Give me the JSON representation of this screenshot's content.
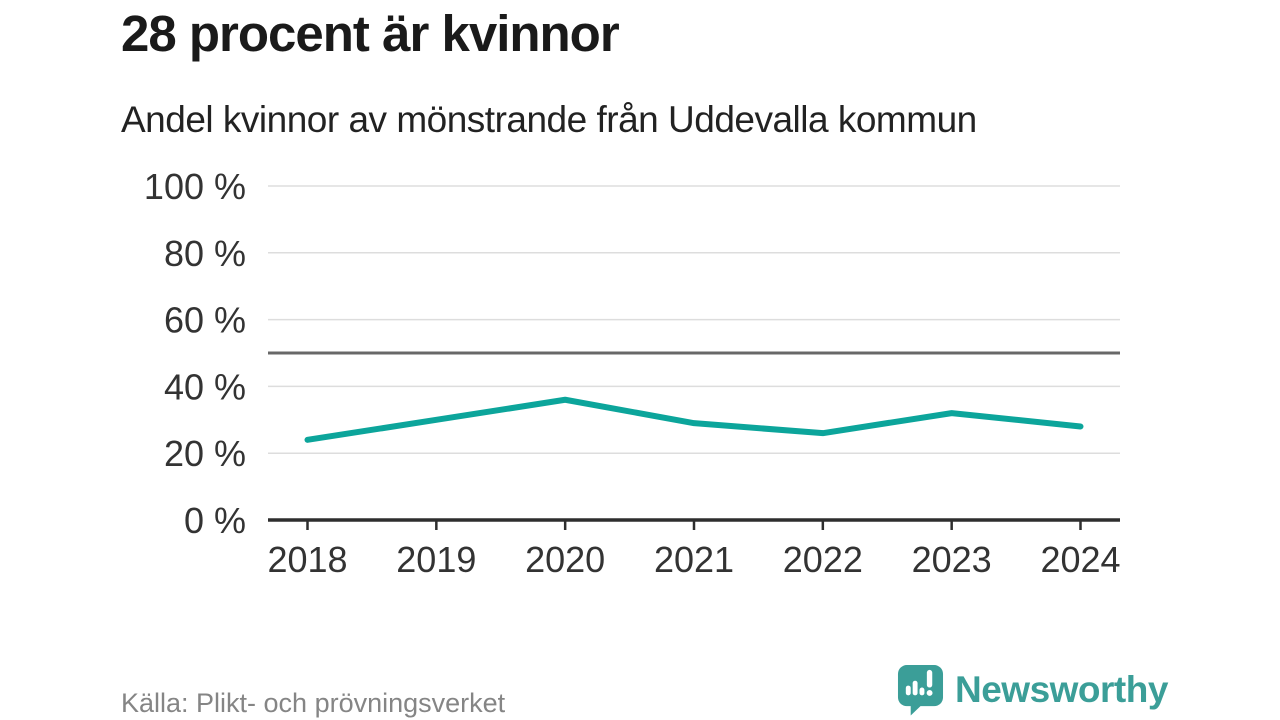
{
  "header": {
    "title": "28 procent är kvinnor",
    "subtitle": "Andel kvinnor av mönstrande från Uddevalla kommun"
  },
  "chart_data": {
    "type": "line",
    "categories": [
      "2018",
      "2019",
      "2020",
      "2021",
      "2022",
      "2023",
      "2024"
    ],
    "values": [
      24,
      30,
      36,
      29,
      26,
      32,
      28
    ],
    "title": "28 procent är kvinnor",
    "subtitle": "Andel kvinnor av mönstrande från Uddevalla kommun",
    "xlabel": "",
    "ylabel": "",
    "ylim": [
      0,
      100
    ],
    "yticks": [
      0,
      20,
      40,
      60,
      80,
      100
    ],
    "ytick_suffix": " %",
    "reference_line": 50,
    "grid": true,
    "legend": "none",
    "colors": {
      "line": "#0ca59b",
      "grid": "#dddddd",
      "reference_line": "#686868",
      "axis": "#2e2e2e",
      "tick_label": "#333333"
    }
  },
  "footer": {
    "source": "Källa: Plikt- och prövningsverket",
    "brand": "Newsworthy",
    "brand_color": "#3b9e98"
  }
}
